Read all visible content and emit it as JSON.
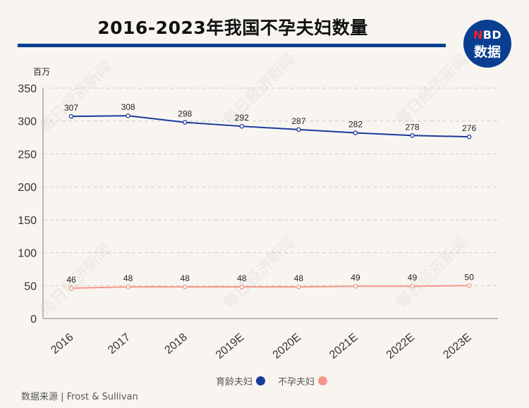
{
  "header": {
    "title": "2016-2023年我国不孕夫妇数量",
    "logo_top": "NBD",
    "logo_top_first": "N",
    "logo_top_rest": "BD",
    "logo_bottom": "数据"
  },
  "watermark": "每日经济新闻",
  "footer": {
    "source": "数据来源 | Frost & Sullivan"
  },
  "colors": {
    "accent": "#0a3e91",
    "series_1": "#1a3a9a",
    "series_2": "#f4978a",
    "background": "#f8f5f1"
  },
  "chart_data": {
    "type": "line",
    "title": "2016-2023年我国不孕夫妇数量",
    "ylabel": "百万",
    "xlabel": "",
    "ylim": [
      0,
      350
    ],
    "yticks": [
      0,
      50,
      100,
      150,
      200,
      250,
      300,
      350
    ],
    "grid": true,
    "legend_position": "bottom",
    "categories": [
      "2016",
      "2017",
      "2018",
      "2019E",
      "2020E",
      "2021E",
      "2022E",
      "2023E"
    ],
    "series": [
      {
        "name": "育龄夫妇",
        "color": "#1a3a9a",
        "values": [
          307,
          308,
          298,
          292,
          287,
          282,
          278,
          276
        ]
      },
      {
        "name": "不孕夫妇",
        "color": "#f4978a",
        "values": [
          46,
          48,
          48,
          48,
          48,
          49,
          49,
          50
        ]
      }
    ]
  }
}
